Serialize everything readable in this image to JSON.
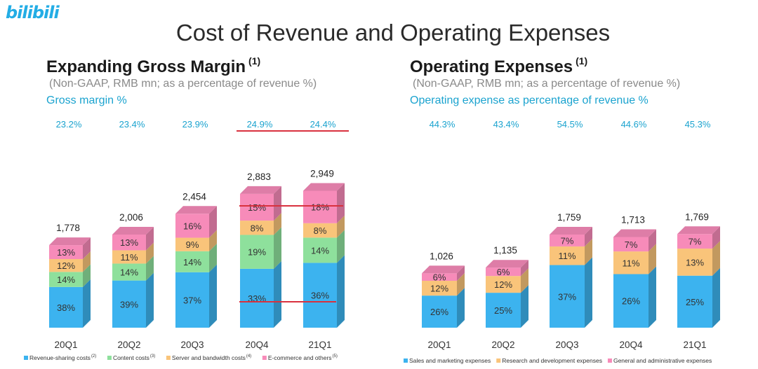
{
  "brand": {
    "logo": "bilibili"
  },
  "page": {
    "title": "Cost of Revenue and Operating Expenses"
  },
  "left": {
    "title": "Expanding Gross Margin",
    "title_sup": "(1)",
    "subtitle": "(Non-GAAP, RMB mn; as a percentage of revenue %)",
    "pct_label": "Gross margin %"
  },
  "right": {
    "title": "Operating Expenses",
    "title_sup": "(1)",
    "subtitle": "(Non-GAAP, RMB mn; as a percentage of revenue %)",
    "pct_label": "Operating expense as percentage of revenue %"
  },
  "colors": {
    "blue": "#3cb3ef",
    "green": "#8ee09c",
    "orange": "#f9c47a",
    "pink": "#f78bb9",
    "red": "#d9313e",
    "accent": "#1ba3cf"
  },
  "chart_data": [
    {
      "type": "bar",
      "stacked": true,
      "title": "Expanding Gross Margin",
      "categories": [
        "20Q1",
        "20Q2",
        "20Q3",
        "20Q4",
        "21Q1"
      ],
      "totals": [
        "1,778",
        "2,006",
        "2,454",
        "2,883",
        "2,949"
      ],
      "total_values": [
        1778,
        2006,
        2454,
        2883,
        2949
      ],
      "top_percentages": [
        "23.2%",
        "23.4%",
        "23.9%",
        "24.9%",
        "24.4%"
      ],
      "series": [
        {
          "name": "Revenue-sharing costs",
          "sup": "(2)",
          "color": "#3cb3ef",
          "labels": [
            "38%",
            "39%",
            "37%",
            "33%",
            "36%"
          ]
        },
        {
          "name": "Content costs",
          "sup": "(3)",
          "color": "#8ee09c",
          "labels": [
            "14%",
            "14%",
            "14%",
            "19%",
            "14%"
          ]
        },
        {
          "name": "Server and bandwidth costs",
          "sup": "(4)",
          "color": "#f9c47a",
          "labels": [
            "12%",
            "11%",
            "9%",
            "8%",
            "8%"
          ]
        },
        {
          "name": "E-commerce and others",
          "sup": "(5)",
          "color": "#f78bb9",
          "labels": [
            "13%",
            "13%",
            "16%",
            "15%",
            "18%"
          ]
        }
      ]
    },
    {
      "type": "bar",
      "stacked": true,
      "title": "Operating Expenses",
      "categories": [
        "20Q1",
        "20Q2",
        "20Q3",
        "20Q4",
        "21Q1"
      ],
      "totals": [
        "1,026",
        "1,135",
        "1,759",
        "1,713",
        "1,769"
      ],
      "total_values": [
        1026,
        1135,
        1759,
        1713,
        1769
      ],
      "top_percentages": [
        "44.3%",
        "43.4%",
        "54.5%",
        "44.6%",
        "45.3%"
      ],
      "series": [
        {
          "name": "Sales and marketing expenses",
          "color": "#3cb3ef",
          "labels": [
            "26%",
            "25%",
            "37%",
            "26%",
            "25%"
          ]
        },
        {
          "name": "Research and development expenses",
          "color": "#f9c47a",
          "labels": [
            "12%",
            "12%",
            "11%",
            "11%",
            "13%"
          ]
        },
        {
          "name": "General and administrative expenses",
          "color": "#f78bb9",
          "labels": [
            "6%",
            "6%",
            "7%",
            "7%",
            "7%"
          ]
        }
      ]
    }
  ]
}
